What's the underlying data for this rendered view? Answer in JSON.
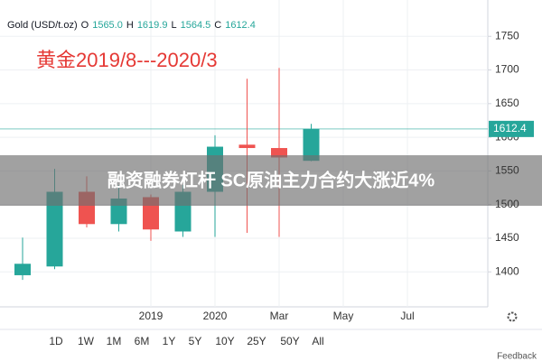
{
  "chart_data": {
    "type": "candlestick",
    "header": {
      "symbol": "Gold (USD/t.oz)",
      "o_label": "O",
      "o": "1565.0",
      "h_label": "H",
      "h": "1619.9",
      "l_label": "L",
      "l": "1564.5",
      "c_label": "C",
      "c": "1612.4"
    },
    "annotation": "黄金2019/8---2020/3",
    "banner": "融资融券杠杆 SC原油主力合约大涨近4%",
    "categories": [
      null,
      null,
      null,
      null,
      "2019",
      null,
      "2020",
      null,
      "Mar",
      null
    ],
    "extra_x_labels": [
      "May",
      "Jul"
    ],
    "open": [
      1395,
      1408,
      1519,
      1471,
      1511,
      1460,
      1519,
      1589,
      1584,
      1565
    ],
    "high": [
      1451,
      1553,
      1542,
      1529,
      1515,
      1529,
      1603,
      1687,
      1703,
      1619.9
    ],
    "low": [
      1388,
      1404,
      1466,
      1460,
      1446,
      1452,
      1452,
      1458,
      1452,
      1564.5
    ],
    "close": [
      1412,
      1519,
      1471,
      1509,
      1463,
      1519,
      1586,
      1584,
      1570,
      1612.4
    ],
    "up_color": "#26a69a",
    "down_color": "#ef5350",
    "last_price": {
      "value": 1612.4,
      "label": "1612.4"
    },
    "ylim": [
      1348,
      1804
    ],
    "yticks": [
      1400,
      1450,
      1500,
      1550,
      1600,
      1650,
      1700,
      1750
    ],
    "grid": true,
    "range_buttons": [
      "1D",
      "1W",
      "1M",
      "6M",
      "1Y",
      "5Y",
      "10Y",
      "25Y",
      "50Y",
      "All"
    ],
    "feedback": "Feedback"
  }
}
